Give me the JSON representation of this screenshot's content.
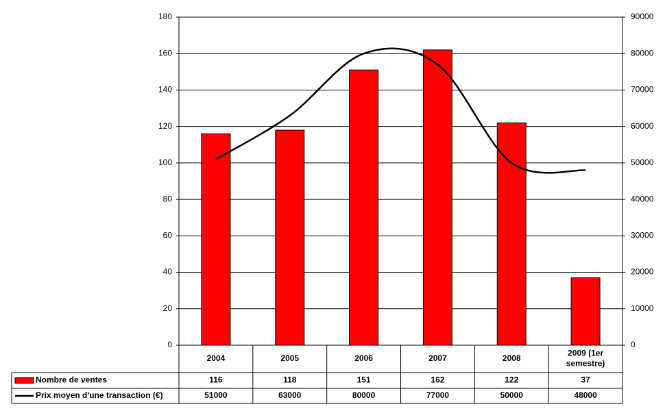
{
  "chart_data": {
    "type": "bar",
    "categories": [
      [
        "2004"
      ],
      [
        "2005"
      ],
      [
        "2006"
      ],
      [
        "2007"
      ],
      [
        "2008"
      ],
      [
        "2009 (1er",
        "semestre)"
      ]
    ],
    "series": [
      {
        "name": "Nombre de ventes",
        "type": "bar",
        "axis": "left",
        "color": "#ff0000",
        "values": [
          116,
          118,
          151,
          162,
          122,
          37
        ]
      },
      {
        "name": "Prix moyen d'une transaction (€)",
        "type": "line",
        "axis": "right",
        "color": "#000000",
        "values": [
          51000,
          63000,
          80000,
          77000,
          50000,
          48000
        ]
      }
    ],
    "ylim_left": [
      0,
      180
    ],
    "yticks_left": [
      0,
      20,
      40,
      60,
      80,
      100,
      120,
      140,
      160,
      180
    ],
    "ylim_right": [
      0,
      90000
    ],
    "yticks_right": [
      0,
      10000,
      20000,
      30000,
      40000,
      50000,
      60000,
      70000,
      80000,
      90000
    ],
    "grid": true,
    "data_table": true,
    "title": "",
    "xlabel": "",
    "ylabel": ""
  }
}
